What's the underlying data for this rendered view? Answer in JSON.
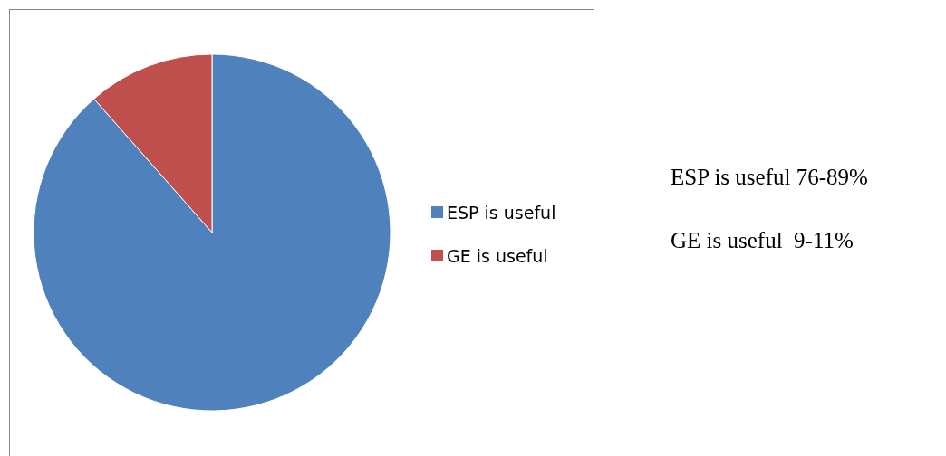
{
  "chart_data": {
    "type": "pie",
    "categories": [
      "ESP is useful",
      "GE is useful"
    ],
    "values": [
      88.5,
      11.5
    ],
    "colors": [
      "#4f81bd",
      "#c0504d"
    ],
    "legend": "right",
    "annotations": [
      "ESP is useful 76-89%",
      "GE is useful  9-11%"
    ]
  }
}
